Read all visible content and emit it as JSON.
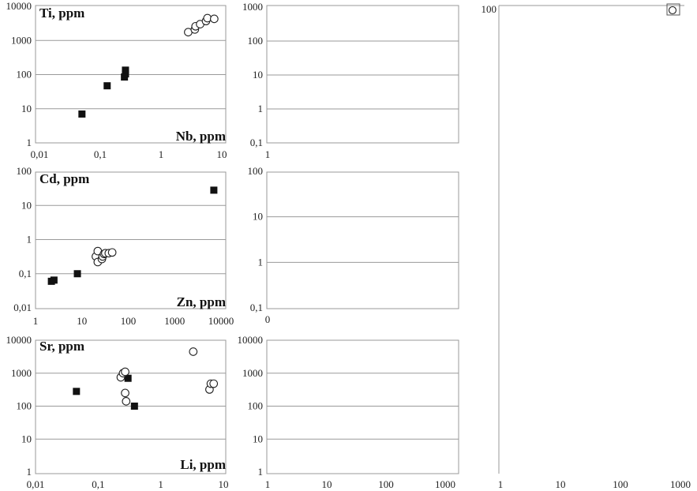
{
  "chart_data": [
    {
      "type": "scatter",
      "ylabel": "Ti, ppm",
      "xlabel": "Nb, ppm",
      "xscale": "log",
      "yscale": "log",
      "xlim": [
        0.01,
        10
      ],
      "ylim": [
        1,
        10000
      ],
      "xticks": [
        "0,01",
        "0,1",
        "1",
        "10"
      ],
      "yticks": [
        "1",
        "10",
        "100",
        "1000",
        "10000"
      ],
      "grid": "horizontal",
      "series": [
        {
          "marker": "filled-square",
          "x": [
            0.05,
            0.13,
            0.25,
            0.26,
            0.26
          ],
          "y": [
            7,
            47,
            85,
            105,
            135
          ]
        },
        {
          "marker": "open-circle",
          "x": [
            2.8,
            3.6,
            3.7,
            4.4,
            5.5,
            5.8,
            7.5
          ],
          "y": [
            1750,
            2100,
            2600,
            3000,
            3700,
            4500,
            4300
          ]
        }
      ]
    },
    {
      "type": "scatter",
      "ylabel": "Cd, ppm",
      "xlabel": "Zn, ppm",
      "xscale": "log",
      "yscale": "log",
      "xlim": [
        1,
        10000
      ],
      "ylim": [
        0.01,
        100
      ],
      "xticks": [
        "1",
        "10",
        "100",
        "1000",
        "10000"
      ],
      "yticks": [
        "0,01",
        "0,1",
        "1",
        "10",
        "100"
      ],
      "grid": "horizontal",
      "series": [
        {
          "marker": "filled-square",
          "x": [
            2.2,
            2.5,
            8,
            7000
          ],
          "y": [
            0.06,
            0.065,
            0.1,
            28
          ]
        },
        {
          "marker": "open-circle",
          "x": [
            20,
            22,
            22,
            27,
            28,
            30,
            32,
            38,
            45
          ],
          "y": [
            0.32,
            0.22,
            0.46,
            0.27,
            0.32,
            0.38,
            0.4,
            0.4,
            0.42
          ]
        }
      ]
    },
    {
      "type": "scatter",
      "ylabel": "Sr, ppm",
      "xlabel": "Li, ppm",
      "xscale": "log",
      "yscale": "log",
      "xlim": [
        0.01,
        10
      ],
      "ylim": [
        1,
        10000
      ],
      "xticks": [
        "0,01",
        "0,1",
        "1",
        "10"
      ],
      "yticks": [
        "1",
        "10",
        "100",
        "1000",
        "10000"
      ],
      "grid": "horizontal",
      "series": [
        {
          "marker": "filled-square",
          "x": [
            0.045,
            0.26,
            0.3,
            0.38
          ],
          "y": [
            280,
            1000,
            700,
            100
          ]
        },
        {
          "marker": "open-circle",
          "x": [
            0.23,
            0.25,
            0.27,
            0.28,
            0.27,
            3.3,
            6.0,
            6.3,
            7.0
          ],
          "y": [
            750,
            1000,
            1100,
            140,
            250,
            4500,
            320,
            480,
            480
          ]
        }
      ]
    },
    {
      "type": "scatter",
      "xscale": "log",
      "yscale": "log",
      "ylim": [
        0.1,
        1000
      ],
      "xticks": [
        "1"
      ],
      "yticks": [
        "0,1",
        "1",
        "10",
        "100",
        "1000"
      ],
      "grid": "horizontal",
      "series": []
    },
    {
      "type": "scatter",
      "xscale": "log",
      "yscale": "log",
      "ylim": [
        0.1,
        100
      ],
      "xticks": [
        "0"
      ],
      "yticks": [
        "0,1",
        "1",
        "10",
        "100"
      ],
      "grid": "horizontal",
      "series": []
    },
    {
      "type": "scatter",
      "xscale": "log",
      "yscale": "log",
      "xlim": [
        1,
        1000
      ],
      "ylim": [
        1,
        10000
      ],
      "xticks": [
        "1",
        "10",
        "100",
        "1000"
      ],
      "yticks": [
        "1",
        "10",
        "100",
        "1000",
        "10000"
      ],
      "grid": "horizontal",
      "series": []
    },
    {
      "type": "scatter",
      "xscale": "log",
      "yscale": "log",
      "xlim": [
        1,
        1000
      ],
      "xticks": [
        "1",
        "10",
        "100",
        "1000"
      ],
      "yticks": [
        "100"
      ],
      "grid": "horizontal",
      "series": []
    }
  ]
}
